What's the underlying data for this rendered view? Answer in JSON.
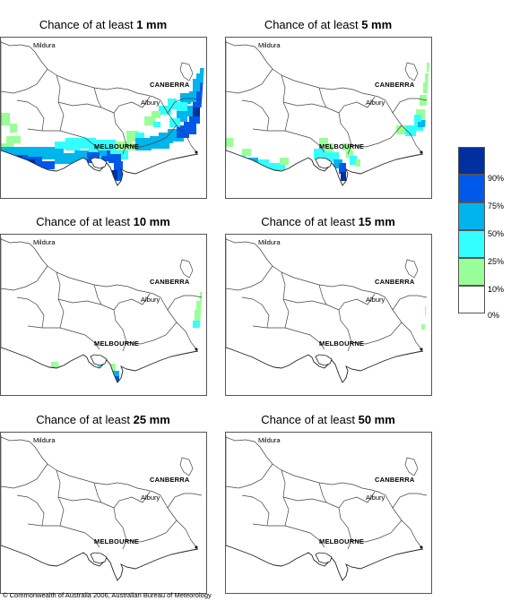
{
  "panels": [
    {
      "id": "p1",
      "prefix": "Chance of at least ",
      "amount": "1 mm"
    },
    {
      "id": "p2",
      "prefix": "Chance of at least ",
      "amount": "5 mm"
    },
    {
      "id": "p3",
      "prefix": "Chance of at least ",
      "amount": "10 mm"
    },
    {
      "id": "p4",
      "prefix": "Chance of at least ",
      "amount": "15 mm"
    },
    {
      "id": "p5",
      "prefix": "Chance of at least ",
      "amount": "25 mm"
    },
    {
      "id": "p6",
      "prefix": "Chance of at least ",
      "amount": "50 mm"
    }
  ],
  "map_labels": {
    "mildura": "Mildura",
    "canberra": "CANBERRA",
    "albury": "Albury",
    "melbourne": "MELBOURNE"
  },
  "legend": {
    "labels": [
      "90%",
      "75%",
      "50%",
      "25%",
      "10%",
      "0%"
    ],
    "colors": [
      "#0030a0",
      "#0058e8",
      "#00b4ec",
      "#33ffff",
      "#99ff99",
      "#ffffff"
    ]
  },
  "copyright": "© Commonwealth of Australia 2006, Australian Bureau of Meteorology"
}
